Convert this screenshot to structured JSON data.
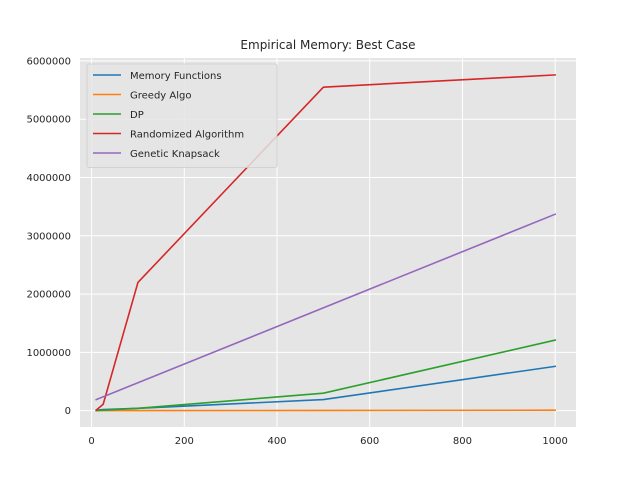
{
  "chart_data": {
    "type": "line",
    "title": "Empirical Memory: Best Case",
    "xlabel": "",
    "ylabel": "",
    "xlim": [
      -25,
      1045
    ],
    "ylim": [
      -280000,
      6050000
    ],
    "x_ticks": [
      0,
      200,
      400,
      600,
      800,
      1000
    ],
    "y_ticks": [
      0,
      1000000,
      2000000,
      3000000,
      4000000,
      5000000,
      6000000
    ],
    "grid": true,
    "legend_position": "top-left",
    "series": [
      {
        "name": "Memory Functions",
        "color": "#1f77b4",
        "x": [
          10,
          25,
          100,
          500,
          1000
        ],
        "y": [
          8000,
          20000,
          40000,
          190000,
          760000
        ]
      },
      {
        "name": "Greedy Algo",
        "color": "#ff7f0e",
        "x": [
          10,
          25,
          100,
          500,
          1000
        ],
        "y": [
          500,
          800,
          1500,
          4000,
          8000
        ]
      },
      {
        "name": "DP",
        "color": "#2ca02c",
        "x": [
          10,
          25,
          100,
          500,
          1000
        ],
        "y": [
          3000,
          8000,
          40000,
          300000,
          1210000
        ]
      },
      {
        "name": "Randomized Algorithm",
        "color": "#d62728",
        "x": [
          10,
          25,
          100,
          500,
          1000
        ],
        "y": [
          10000,
          110000,
          2200000,
          5550000,
          5760000
        ]
      },
      {
        "name": "Genetic Knapsack",
        "color": "#9467bd",
        "x": [
          10,
          1000
        ],
        "y": [
          190000,
          3370000
        ]
      }
    ]
  }
}
